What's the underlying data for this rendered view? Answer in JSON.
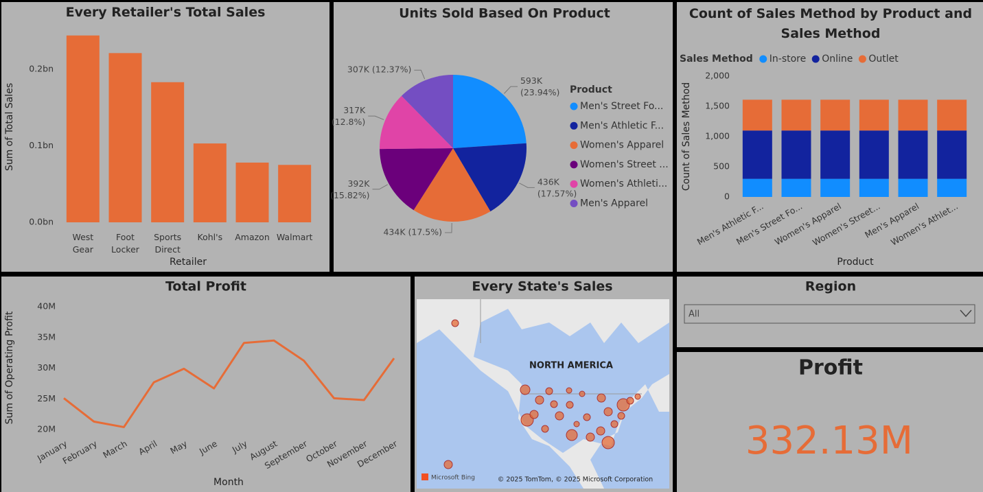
{
  "chart_data": [
    {
      "type": "bar",
      "title": "Every Retailer's Total Sales",
      "x_label": "Retailer",
      "y_label": "Sum of Total Sales",
      "categories": [
        "West Gear",
        "Foot Locker",
        "Sports Direct",
        "Kohl's",
        "Amazon",
        "Walmart"
      ],
      "values": [
        0.244,
        0.221,
        0.183,
        0.103,
        0.078,
        0.075
      ],
      "color": "#e66c37",
      "ylim": [
        0,
        0.25
      ],
      "yticks": [
        {
          "value": 0,
          "label": "0.0bn"
        },
        {
          "value": 0.1,
          "label": "0.1bn"
        },
        {
          "value": 0.2,
          "label": "0.2bn"
        }
      ],
      "grid": false
    },
    {
      "type": "pie",
      "title": "Units Sold Based On Product",
      "legend_title": "Product",
      "categories": [
        "Men's Street Fo...",
        "Men's Athletic F...",
        "Women's Apparel",
        "Women's Street ...",
        "Women's Athleti...",
        "Men's Apparel"
      ],
      "values": [
        593,
        436,
        434,
        392,
        317,
        307
      ],
      "value_labels": [
        "593K (23.94%)",
        "436K (17.57%)",
        "434K (17.5%)",
        "392K (15.82%)",
        "317K (12.8%)",
        "307K (12.37%)"
      ],
      "colors": [
        "#118dff",
        "#12239e",
        "#e66c37",
        "#6b007b",
        "#e044a7",
        "#744ec2"
      ],
      "legend": "right"
    },
    {
      "type": "bar",
      "title": "Count of Sales Method by Product and Sales Method",
      "x_label": "Product",
      "y_label": "Count of Sales Method",
      "legend_title": "Sales Method",
      "categories": [
        "Men's Athletic F...",
        "Men's Street Fo...",
        "Women's Apparel",
        "Women's Street...",
        "Men's Apparel",
        "Women's Athlet..."
      ],
      "series": [
        {
          "name": "In-store",
          "color": "#118dff",
          "values": [
            300,
            300,
            300,
            300,
            300,
            300
          ]
        },
        {
          "name": "Online",
          "color": "#12239e",
          "values": [
            800,
            800,
            800,
            800,
            800,
            800
          ]
        },
        {
          "name": "Outlet",
          "color": "#e66c37",
          "values": [
            510,
            510,
            510,
            510,
            510,
            510
          ]
        }
      ],
      "stacked": true,
      "ylim": [
        0,
        2000
      ],
      "yticks": [
        0,
        500,
        {
          "value": 1000,
          "label": "1,000"
        },
        {
          "value": 1500,
          "label": "1,500"
        },
        {
          "value": 2000,
          "label": "2,000"
        }
      ],
      "legend": "top",
      "grid": false
    },
    {
      "type": "line",
      "title": "Total Profit",
      "x_label": "Month",
      "y_label": "Sum of Operating Profit",
      "categories": [
        "January",
        "February",
        "March",
        "April",
        "May",
        "June",
        "July",
        "August",
        "September",
        "October",
        "November",
        "December"
      ],
      "values": [
        25.1,
        21.3,
        20.4,
        27.7,
        29.9,
        26.7,
        34.1,
        34.5,
        31.2,
        25.1,
        24.8,
        31.6
      ],
      "color": "#e66c37",
      "ylim": [
        20,
        40
      ],
      "yticks": [
        {
          "value": 20,
          "label": "20M"
        },
        {
          "value": 25,
          "label": "25M"
        },
        {
          "value": 30,
          "label": "30M"
        },
        {
          "value": 35,
          "label": "35M"
        },
        {
          "value": 40,
          "label": "40M"
        }
      ],
      "grid": false
    }
  ],
  "map": {
    "title": "Every State's Sales",
    "region_label": "NORTH AMERICA",
    "brand": "Microsoft Bing",
    "copyright": "© 2025 TomTom, © 2025 Microsoft Corporation"
  },
  "region_slicer": {
    "title": "Region",
    "selected": "All"
  },
  "profit_card": {
    "title": "Profit",
    "value": "332.13M"
  }
}
